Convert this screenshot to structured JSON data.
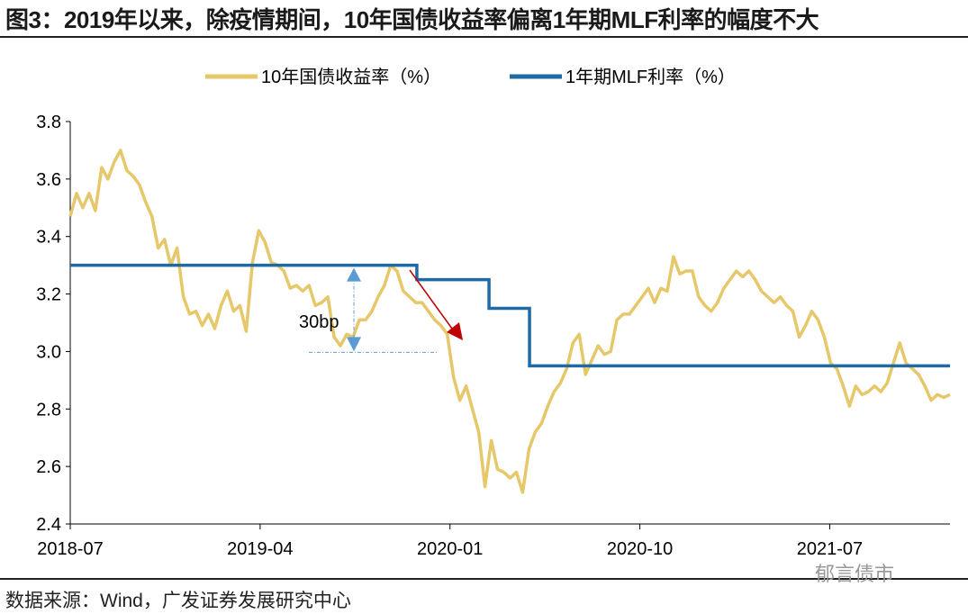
{
  "title": "图3：2019年以来，除疫情期间，10年国债收益率偏离1年期MLF利率的幅度不大",
  "source": "数据来源：Wind，广发证券发展研究中心",
  "watermark": "郁言债市",
  "colors": {
    "yield": "#e6c86a",
    "mlf": "#1f6aa5",
    "annot_blue": "#5b9bd5",
    "annot_red": "#c00000"
  },
  "chart_data": {
    "type": "line",
    "title": "",
    "xlabel": "",
    "ylabel": "",
    "ylim": [
      2.4,
      3.8
    ],
    "yticks": [
      3.8,
      3.6,
      3.4,
      3.2,
      3.0,
      2.8,
      2.6,
      2.4
    ],
    "ytick_labels": [
      "3.8",
      "3.6",
      "3.4",
      "3.2",
      "3.0",
      "2.8",
      "2.6",
      "2.4"
    ],
    "x_unit": "months since 2018-07",
    "xlim": [
      0,
      41.7
    ],
    "xticks": [
      0,
      9,
      18,
      27,
      36
    ],
    "xtick_labels": [
      "2018-07",
      "2019-04",
      "2020-01",
      "2020-10",
      "2021-07"
    ],
    "legend_position": "top-center",
    "series": [
      {
        "name": "10年国债收益率（%）",
        "x_range": [
          0,
          41.7
        ],
        "values": [
          3.47,
          3.55,
          3.5,
          3.55,
          3.49,
          3.64,
          3.6,
          3.66,
          3.7,
          3.63,
          3.61,
          3.58,
          3.52,
          3.47,
          3.36,
          3.39,
          3.3,
          3.36,
          3.19,
          3.13,
          3.14,
          3.09,
          3.13,
          3.08,
          3.16,
          3.21,
          3.14,
          3.16,
          3.07,
          3.31,
          3.42,
          3.38,
          3.31,
          3.3,
          3.28,
          3.22,
          3.23,
          3.21,
          3.23,
          3.16,
          3.17,
          3.19,
          3.05,
          3.02,
          3.06,
          3.05,
          3.11,
          3.11,
          3.14,
          3.19,
          3.23,
          3.3,
          3.28,
          3.21,
          3.19,
          3.17,
          3.17,
          3.14,
          3.11,
          3.09,
          3.06,
          2.91,
          2.83,
          2.88,
          2.8,
          2.72,
          2.53,
          2.69,
          2.59,
          2.58,
          2.56,
          2.58,
          2.51,
          2.66,
          2.72,
          2.75,
          2.81,
          2.86,
          2.89,
          2.94,
          3.03,
          3.06,
          2.92,
          2.97,
          3.02,
          2.99,
          3.0,
          3.11,
          3.13,
          3.13,
          3.16,
          3.19,
          3.22,
          3.17,
          3.22,
          3.21,
          3.33,
          3.27,
          3.28,
          3.28,
          3.19,
          3.16,
          3.14,
          3.17,
          3.22,
          3.25,
          3.28,
          3.26,
          3.28,
          3.25,
          3.21,
          3.19,
          3.17,
          3.19,
          3.16,
          3.14,
          3.05,
          3.09,
          3.14,
          3.11,
          3.05,
          2.96,
          2.94,
          2.88,
          2.81,
          2.88,
          2.85,
          2.86,
          2.88,
          2.86,
          2.89,
          2.96,
          3.03,
          2.96,
          2.94,
          2.92,
          2.88,
          2.83,
          2.85,
          2.84,
          2.85
        ]
      },
      {
        "name": "1年期MLF利率（%）",
        "steps": [
          [
            0,
            3.3
          ],
          [
            16.43,
            3.25
          ],
          [
            19.85,
            3.15
          ],
          [
            21.77,
            2.95
          ],
          [
            41.7,
            2.95
          ]
        ]
      }
    ],
    "annotations": [
      {
        "text": "30bp",
        "from": 3.3,
        "to": 3.0,
        "x": 13.4
      },
      {
        "type": "arrow",
        "from": [
          16.1,
          3.3
        ],
        "to": [
          18.5,
          3.06
        ]
      }
    ]
  }
}
